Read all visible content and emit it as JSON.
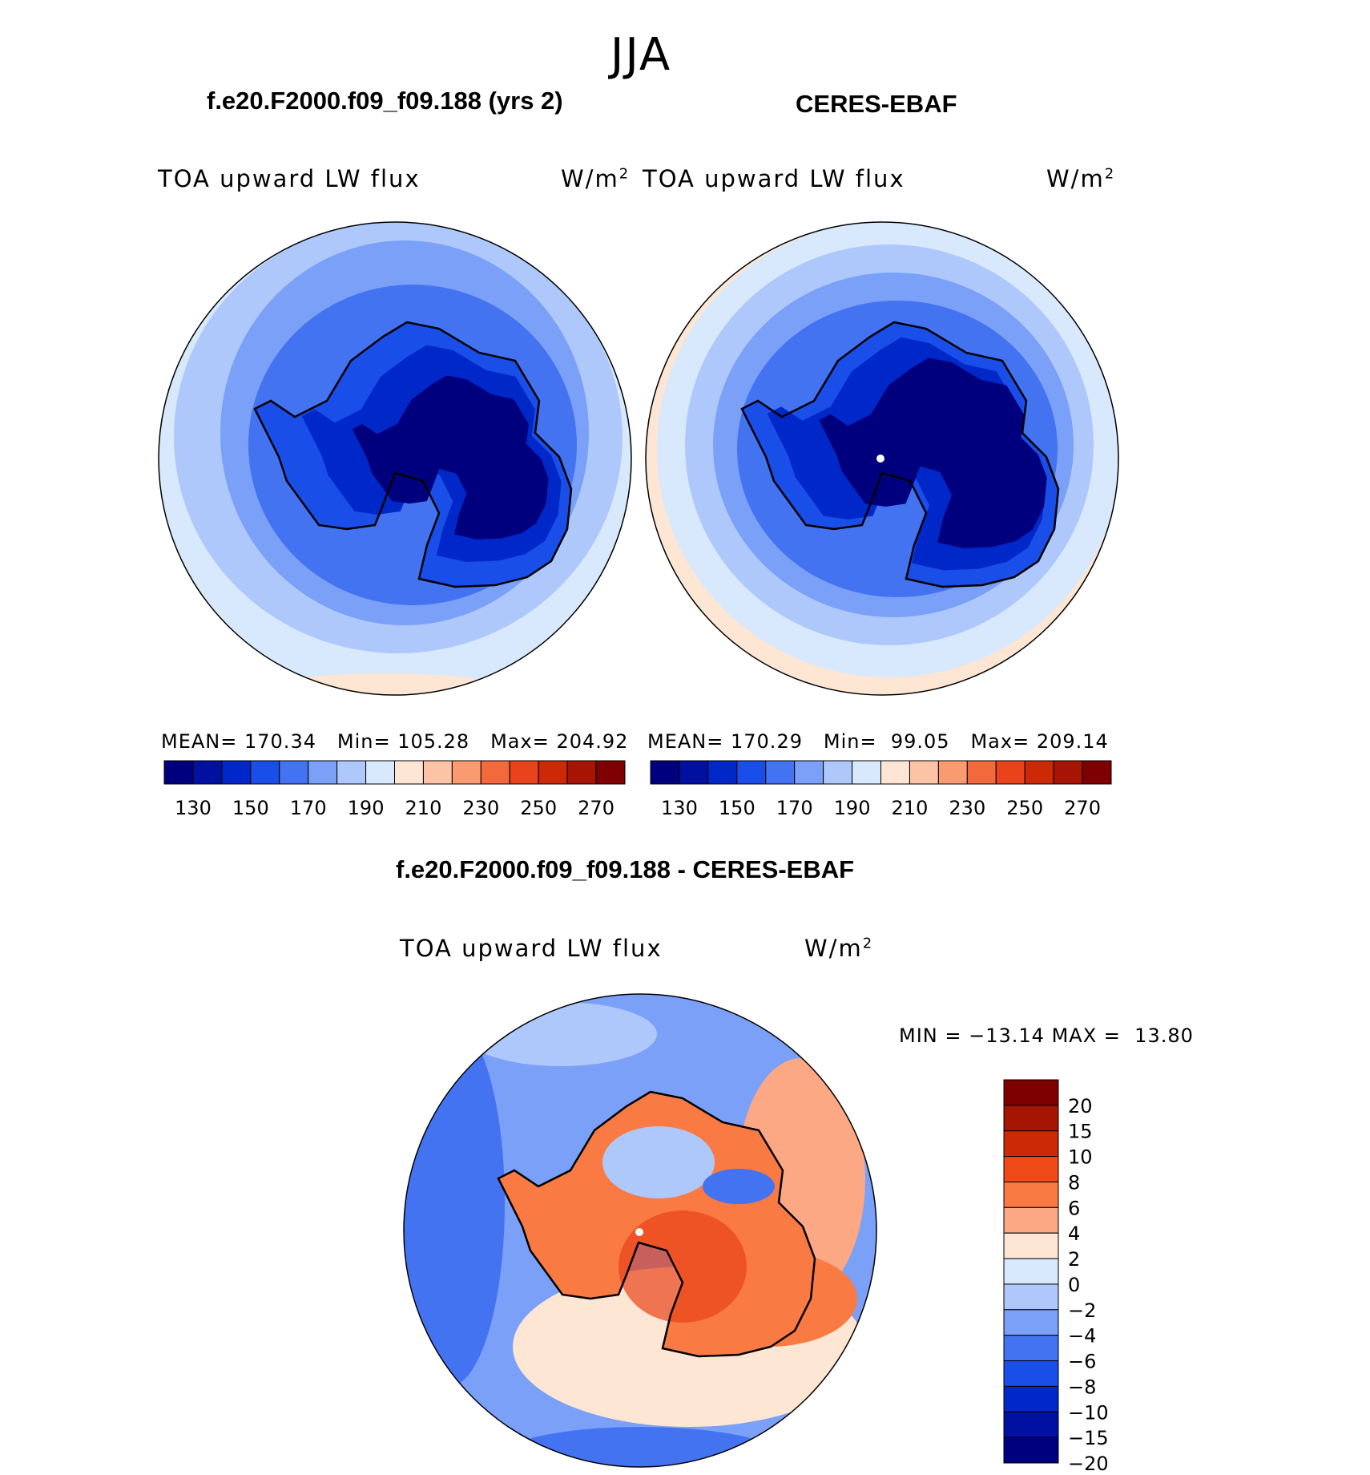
{
  "header": {
    "season": "JJA"
  },
  "panel1": {
    "title": "f.e20.F2000.f09_f09.188 (yrs 2)",
    "field": "TOA upward LW flux",
    "units": "W/m",
    "units_sup": "2",
    "mean_label": "MEAN=",
    "mean": "170.34",
    "min_label": "Min=",
    "min": "105.28",
    "max_label": "Max=",
    "max": "204.92"
  },
  "panel2": {
    "title": "CERES-EBAF",
    "field": "TOA upward LW flux",
    "units": "W/m",
    "units_sup": "2",
    "mean_label": "MEAN=",
    "mean": "170.29",
    "min_label": "Min=",
    "min": "99.05",
    "max_label": "Max=",
    "max": "209.14"
  },
  "panel3": {
    "title": "f.e20.F2000.f09_f09.188 - CERES-EBAF",
    "field": "TOA upward LW flux",
    "units": "W/m",
    "units_sup": "2",
    "min_label": "MIN =",
    "min": "−13.14",
    "max_label": "MAX =",
    "max": "13.80"
  },
  "colorbar_abs": {
    "colors": [
      "#00007f",
      "#0010a0",
      "#0028c8",
      "#1a4ee8",
      "#4373f0",
      "#7aa0f7",
      "#aec8fb",
      "#d8e8fd",
      "#fde6d3",
      "#fcc3a6",
      "#fa9a70",
      "#f26a3c",
      "#e8431a",
      "#cc2a06",
      "#a61404",
      "#7f0000"
    ],
    "labels": [
      "130",
      "150",
      "170",
      "190",
      "210",
      "230",
      "250",
      "270"
    ]
  },
  "colorbar_diff": {
    "colors": [
      "#7f0000",
      "#a61404",
      "#cc2a06",
      "#f04a18",
      "#fa7a44",
      "#fca884",
      "#fde6d3",
      "#d8e8fd",
      "#aec8fb",
      "#7aa0f7",
      "#4373f0",
      "#1a4ee8",
      "#0028c8",
      "#0010a0",
      "#00007f"
    ],
    "labels": [
      "20",
      "15",
      "10",
      "8",
      "6",
      "4",
      "2",
      "0",
      "−2",
      "−4",
      "−6",
      "−8",
      "−10",
      "−15",
      "−20"
    ]
  }
}
